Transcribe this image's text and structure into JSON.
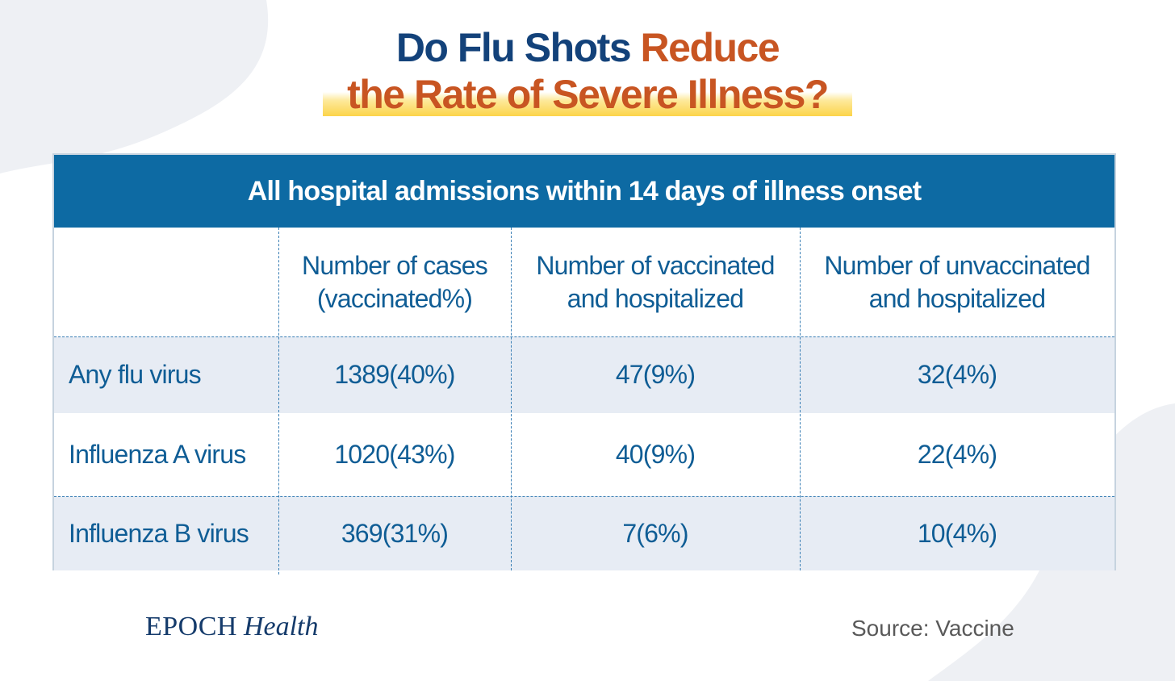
{
  "title": {
    "line1_part1": "Do Flu Shots ",
    "line1_part2": "Reduce",
    "line2": "the Rate of Severe Illness?"
  },
  "chart_data": {
    "type": "table",
    "header": "All hospital admissions within 14 days of illness onset",
    "columns": [
      "",
      [
        "Number of cases",
        "(vaccinated%)"
      ],
      [
        "Number of vaccinated",
        "and hospitalized"
      ],
      [
        "Number of unvaccinated",
        "and hospitalized"
      ]
    ],
    "rows": [
      [
        "Any flu virus",
        "1389(40%)",
        "47(9%)",
        "32(4%)"
      ],
      [
        "Influenza A virus",
        "1020(43%)",
        "40(9%)",
        "22(4%)"
      ],
      [
        "Influenza B virus",
        "369(31%)",
        "7(6%)",
        "10(4%)"
      ]
    ]
  },
  "footer": {
    "logo_brand": "EPOCH",
    "logo_sub": "Health",
    "source": "Source: Vaccine"
  },
  "colors": {
    "title_blue": "#13427a",
    "title_orange": "#c85522",
    "header_blue": "#0d6aa3",
    "text_blue": "#0f5d95",
    "row_shade": "#e7ecf4",
    "highlight_yellow": "#fcd44a"
  }
}
